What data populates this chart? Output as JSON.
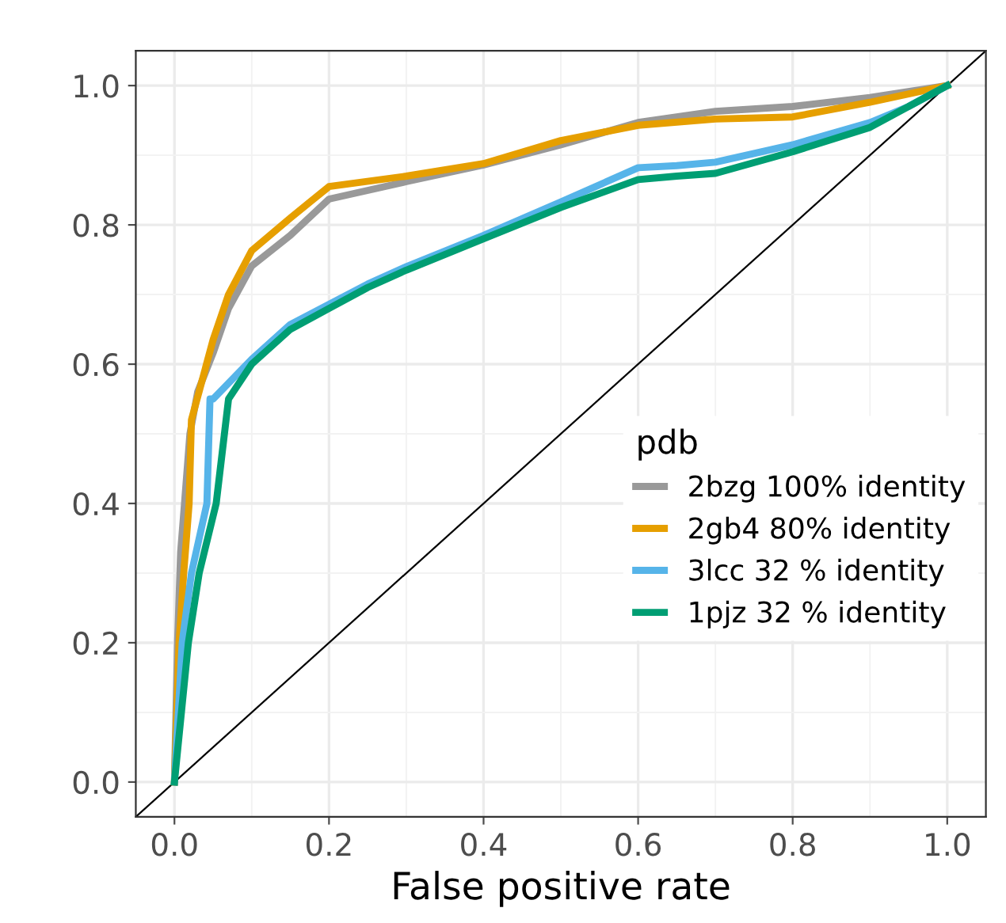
{
  "chart_data": {
    "type": "line",
    "xlabel": "False positive rate",
    "legend_title": "pdb",
    "legend": "bottom right",
    "grid": true,
    "xlim": [
      -0.05,
      1.05
    ],
    "ylim": [
      -0.05,
      1.05
    ],
    "xticks": [
      {
        "value": 0,
        "label": "0.0"
      },
      0.2,
      0.4,
      0.6,
      0.8,
      {
        "value": 1,
        "label": "1.0"
      }
    ],
    "yticks": [
      {
        "value": 0,
        "label": "0.0"
      },
      0.2,
      0.4,
      0.6,
      0.8,
      {
        "value": 1,
        "label": "1.0"
      }
    ],
    "series": [
      {
        "name": "2bzg 100% identity",
        "color": "#999999",
        "x": [
          0,
          0.004,
          0.008,
          0.013,
          0.02,
          0.03,
          0.05,
          0.07,
          0.1,
          0.15,
          0.2,
          0.3,
          0.4,
          0.5,
          0.6,
          0.7,
          0.8,
          0.9,
          1
        ],
        "values": [
          0,
          0.2,
          0.33,
          0.4,
          0.5,
          0.56,
          0.616,
          0.68,
          0.741,
          0.785,
          0.837,
          0.862,
          0.886,
          0.915,
          0.947,
          0.963,
          0.97,
          0.983,
          1
        ]
      },
      {
        "name": "2gb4 80% identity",
        "color": "#e69f00",
        "x": [
          0,
          0.006,
          0.012,
          0.019,
          0.022,
          0.05,
          0.07,
          0.1,
          0.15,
          0.2,
          0.3,
          0.4,
          0.5,
          0.6,
          0.7,
          0.8,
          0.9,
          1
        ],
        "values": [
          0,
          0.2,
          0.3,
          0.4,
          0.52,
          0.635,
          0.7,
          0.763,
          0.81,
          0.855,
          0.87,
          0.888,
          0.921,
          0.943,
          0.952,
          0.955,
          0.976,
          1
        ]
      },
      {
        "name": "3lcc 32 % identity",
        "color": "#56b4e9",
        "x": [
          0,
          0.01,
          0.022,
          0.042,
          0.046,
          0.05,
          0.1,
          0.15,
          0.2,
          0.25,
          0.3,
          0.4,
          0.5,
          0.6,
          0.65,
          0.7,
          0.8,
          0.9,
          0.95,
          1
        ],
        "values": [
          0,
          0.2,
          0.3,
          0.4,
          0.55,
          0.55,
          0.607,
          0.657,
          0.686,
          0.715,
          0.74,
          0.785,
          0.833,
          0.882,
          0.885,
          0.89,
          0.915,
          0.947,
          0.97,
          1
        ]
      },
      {
        "name": "1pjz 32 % identity",
        "color": "#009e73",
        "x": [
          0,
          0.018,
          0.032,
          0.054,
          0.07,
          0.1,
          0.15,
          0.2,
          0.25,
          0.3,
          0.4,
          0.5,
          0.6,
          0.65,
          0.7,
          0.8,
          0.9,
          1
        ],
        "values": [
          0,
          0.2,
          0.3,
          0.4,
          0.55,
          0.6,
          0.65,
          0.68,
          0.71,
          0.735,
          0.78,
          0.825,
          0.865,
          0.87,
          0.874,
          0.905,
          0.94,
          1
        ]
      },
      {
        "color": "#000000",
        "x": [
          -0.05,
          1.05
        ],
        "values": [
          -0.05,
          1.05
        ]
      }
    ]
  }
}
